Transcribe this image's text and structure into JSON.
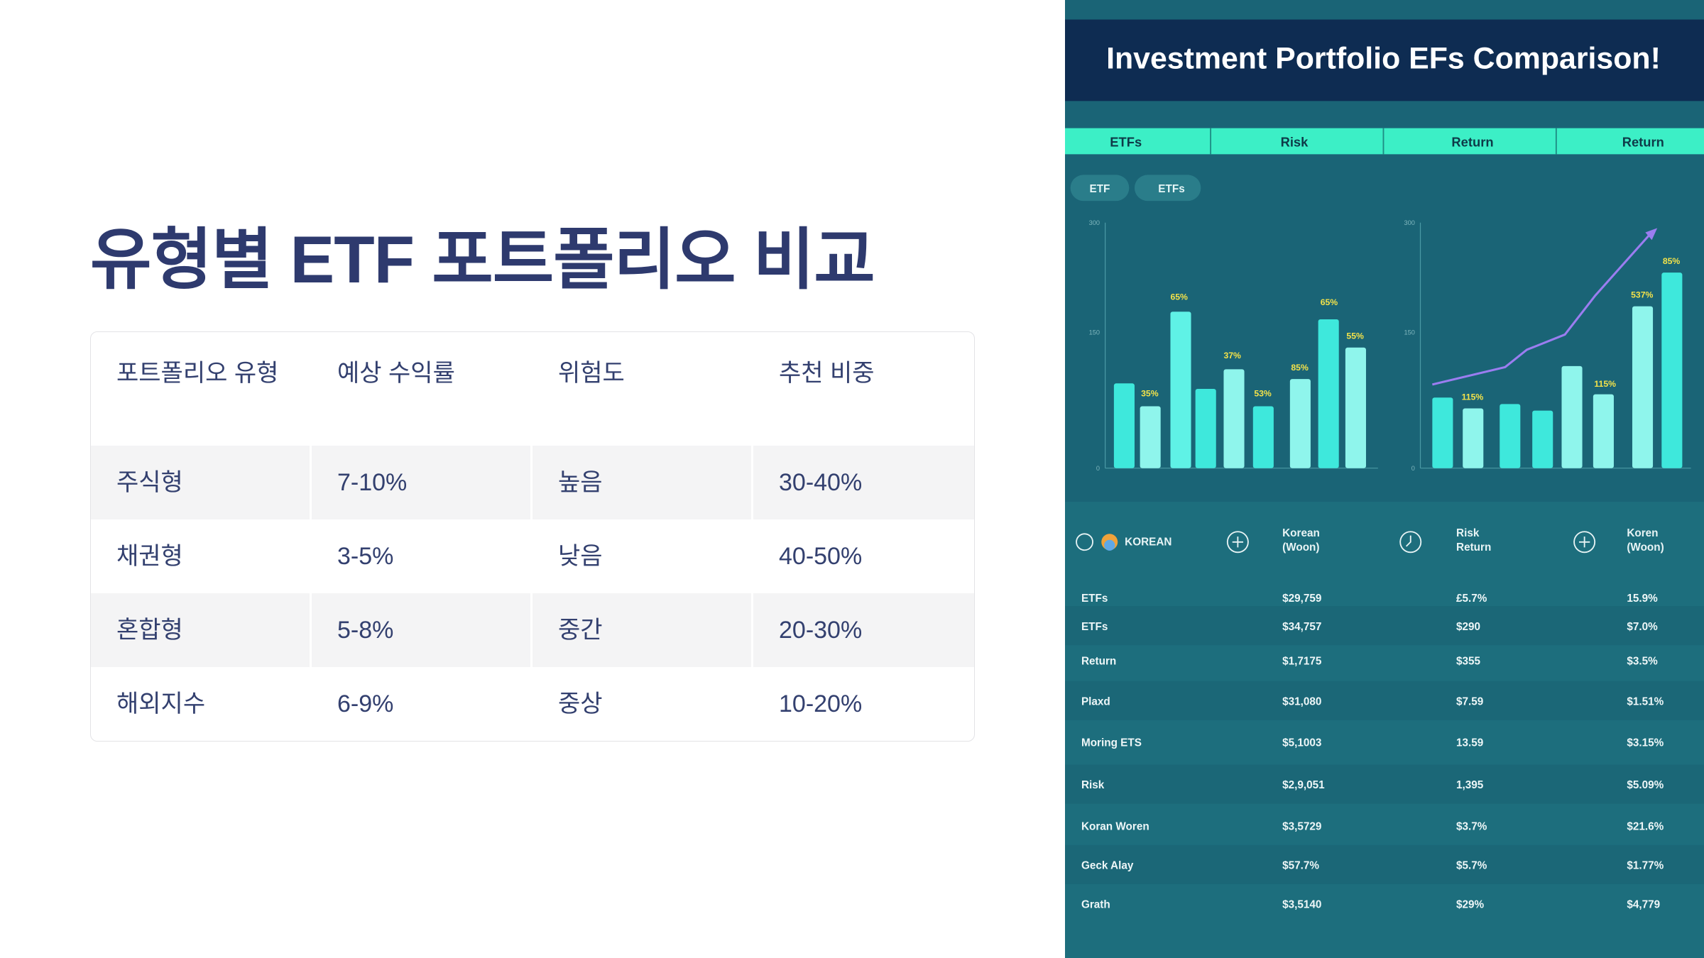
{
  "slide": {
    "title": "유형별 ETF 포트폴리오 비교",
    "table": {
      "header": [
        "포트폴리오 유형",
        "예상 수익률",
        "위험도",
        "추천 비중"
      ],
      "rows": [
        [
          "주식형",
          "7-10%",
          "높음",
          "30-40%"
        ],
        [
          "채권형",
          "3-5%",
          "낮음",
          "40-50%"
        ],
        [
          "혼합형",
          "5-8%",
          "중간",
          "20-30%"
        ],
        [
          "해외지수",
          "6-9%",
          "중상",
          "10-20%"
        ]
      ]
    }
  },
  "image": {
    "title": "Investment Portfolio EFs Comparison!",
    "tabs": [
      "ETFs",
      "Risk",
      "Return",
      "Return"
    ],
    "pills": [
      "ETF",
      "ETFs"
    ],
    "chart_left": {
      "axis_labels": [
        "300",
        "150",
        "0"
      ],
      "labels": [
        "35%",
        "65%",
        "37%",
        "53%",
        "85%",
        "65%",
        "55%"
      ]
    },
    "chart_right": {
      "axis_labels": [
        "300",
        "150",
        "0"
      ],
      "labels": [
        "115%",
        "115%",
        "537%",
        "85%"
      ]
    },
    "table": {
      "header": [
        [
          "KOREAN"
        ],
        [
          "Korean",
          "(Woon)"
        ],
        [
          "Risk",
          "Return"
        ],
        [
          "Koren",
          "(Woon)"
        ]
      ],
      "rows": [
        [
          "ETFs",
          "$29,759",
          "£5.7%",
          "15.9%"
        ],
        [
          "ETFs",
          "$34,757",
          "$290",
          "$7.0%"
        ],
        [
          "Return",
          "$1,7175",
          "$355",
          "$3.5%"
        ],
        [
          "Plaxd",
          "$31,080",
          "$7.59",
          "$1.51%"
        ],
        [
          "Moring ETS",
          "$5,1003",
          "13.59",
          "$3.15%"
        ],
        [
          "Risk",
          "$2,9,051",
          "1,395",
          "$5.09%"
        ],
        [
          "Koran Woren",
          "$3,5729",
          "$3.7%",
          "$21.6%"
        ],
        [
          "Geck Alay",
          "$57.7%",
          "$5.7%",
          "$1.77%"
        ],
        [
          "Grath",
          "$3,5140",
          "$29%",
          "$4,779"
        ]
      ]
    }
  }
}
